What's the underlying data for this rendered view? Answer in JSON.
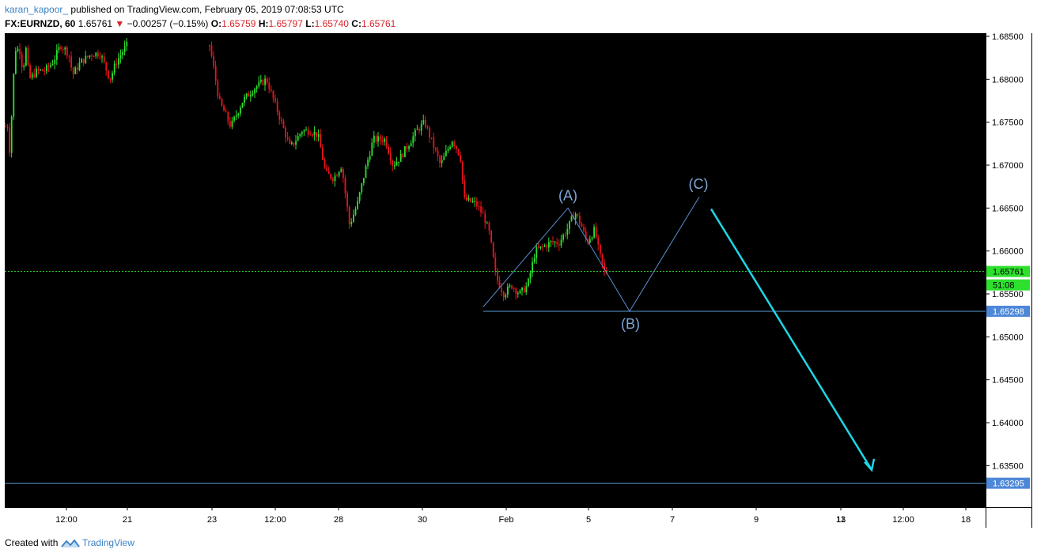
{
  "header": {
    "author": "karan_kapoor_",
    "published": " published on TradingView.com, February 05, 2019 07:08:53 UTC",
    "symbol": "FX:EURNZD, 60",
    "last": "1.65761",
    "arrow": "▼",
    "change": "−0.00257 (−0.15%)",
    "o_label": "O:",
    "o_value": "1.65759",
    "h_label": "H:",
    "h_value": "1.65797",
    "l_label": "L:",
    "l_value": "1.65740",
    "c_label": "C:",
    "c_value": "1.65761"
  },
  "footer": {
    "created_with": "Created with",
    "brand": "TradingView"
  },
  "chart_data": {
    "type": "candlestick",
    "symbol": "FX:EURNZD",
    "interval": "60",
    "background": "#000000",
    "up_color": "#2ee02e",
    "down_color": "#e8141c",
    "ylim": [
      1.6305,
      1.686
    ],
    "y_ticks": [
      "1.68500",
      "1.68000",
      "1.67500",
      "1.67000",
      "1.66500",
      "1.66000",
      "1.65500",
      "1.65000",
      "1.64500",
      "1.64000",
      "1.63500"
    ],
    "x_ticks": [
      "12:00",
      "21",
      "23",
      "12:00",
      "28",
      "30",
      "Feb",
      "5",
      "7",
      "9",
      "11",
      "13",
      "12:00",
      "18"
    ],
    "price_anchors": [
      [
        0,
        1.6745
      ],
      [
        3,
        1.6745
      ],
      [
        5,
        1.6715
      ],
      [
        8,
        1.676
      ],
      [
        12,
        1.6835
      ],
      [
        18,
        1.6835
      ],
      [
        22,
        1.681
      ],
      [
        26,
        1.6835
      ],
      [
        30,
        1.68
      ],
      [
        40,
        1.681
      ],
      [
        50,
        1.681
      ],
      [
        60,
        1.682
      ],
      [
        70,
        1.684
      ],
      [
        80,
        1.683
      ],
      [
        85,
        1.6805
      ],
      [
        95,
        1.682
      ],
      [
        110,
        1.683
      ],
      [
        120,
        1.683
      ],
      [
        132,
        1.68
      ],
      [
        140,
        1.682
      ],
      [
        150,
        1.6835
      ],
      [
        154,
        1.684
      ],
      [
        258,
        1.684
      ],
      [
        262,
        1.682
      ],
      [
        270,
        1.6775
      ],
      [
        285,
        1.6745
      ],
      [
        300,
        1.6775
      ],
      [
        315,
        1.679
      ],
      [
        330,
        1.68
      ],
      [
        345,
        1.676
      ],
      [
        360,
        1.672
      ],
      [
        375,
        1.674
      ],
      [
        385,
        1.674
      ],
      [
        395,
        1.6735
      ],
      [
        405,
        1.669
      ],
      [
        415,
        1.6685
      ],
      [
        425,
        1.67
      ],
      [
        435,
        1.663
      ],
      [
        445,
        1.6655
      ],
      [
        455,
        1.6695
      ],
      [
        465,
        1.673
      ],
      [
        480,
        1.673
      ],
      [
        490,
        1.67
      ],
      [
        500,
        1.671
      ],
      [
        510,
        1.6725
      ],
      [
        520,
        1.674
      ],
      [
        530,
        1.675
      ],
      [
        540,
        1.6725
      ],
      [
        550,
        1.67
      ],
      [
        565,
        1.673
      ],
      [
        575,
        1.671
      ],
      [
        580,
        1.666
      ],
      [
        595,
        1.6655
      ],
      [
        605,
        1.664
      ],
      [
        612,
        1.662
      ],
      [
        620,
        1.657
      ],
      [
        630,
        1.655
      ],
      [
        640,
        1.656
      ],
      [
        650,
        1.655
      ],
      [
        660,
        1.656
      ],
      [
        670,
        1.66
      ],
      [
        680,
        1.6605
      ],
      [
        690,
        1.661
      ],
      [
        700,
        1.661
      ],
      [
        710,
        1.6625
      ],
      [
        720,
        1.6645
      ],
      [
        728,
        1.663
      ],
      [
        735,
        1.661
      ],
      [
        745,
        1.6625
      ],
      [
        750,
        1.66
      ],
      [
        757,
        1.6576
      ],
      [
        762,
        1.6576
      ]
    ],
    "current_price": {
      "label": "1.65761",
      "value": 1.65761,
      "color": "#2ee02e"
    },
    "countdown": "51:08",
    "level_lines": [
      {
        "label": "1.65298",
        "value": 1.65298,
        "color": "#5b9bd5"
      },
      {
        "label": "1.63295",
        "value": 1.63295,
        "color": "#5b9bd5"
      }
    ],
    "wave_labels": [
      "(A)",
      "(B)",
      "(C)"
    ],
    "wave_line_color": "#5b8fd0",
    "arrow_color": "#1ed6e6"
  }
}
